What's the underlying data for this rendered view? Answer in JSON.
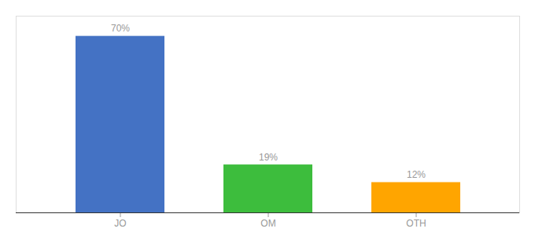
{
  "chart_data": {
    "type": "bar",
    "categories": [
      "JO",
      "OM",
      "OTH"
    ],
    "values": [
      70,
      19,
      12
    ],
    "value_labels": [
      "70%",
      "19%",
      "12%"
    ],
    "colors": [
      "#4472C4",
      "#3DBD3D",
      "#FFA500"
    ],
    "ylim": [
      0,
      78
    ],
    "data_labels": true,
    "tick_labels": "x",
    "grid": false
  }
}
